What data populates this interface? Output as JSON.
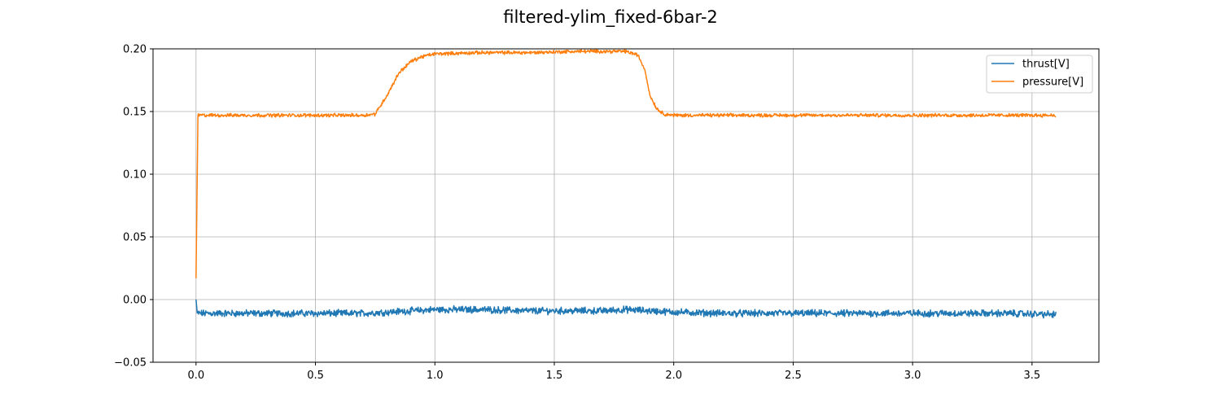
{
  "chart_data": {
    "type": "line",
    "title": "filtered-ylim_fixed-6bar-2",
    "xlabel": "",
    "ylabel": "",
    "xlim": [
      -0.18,
      3.78
    ],
    "ylim": [
      -0.05,
      0.2
    ],
    "xticks": [
      0.0,
      0.5,
      1.0,
      1.5,
      2.0,
      2.5,
      3.0,
      3.5
    ],
    "xtick_labels": [
      "0.0",
      "0.5",
      "1.0",
      "1.5",
      "2.0",
      "2.5",
      "3.0",
      "3.5"
    ],
    "yticks": [
      -0.05,
      0.0,
      0.05,
      0.1,
      0.15,
      0.2
    ],
    "ytick_labels": [
      "−0.05",
      "0.00",
      "0.05",
      "0.10",
      "0.15",
      "0.20"
    ],
    "grid": true,
    "legend_position": "top-right",
    "series": [
      {
        "name": "thrust[V]",
        "color": "#1f77b4",
        "x": [
          0.0,
          0.005,
          0.1,
          0.3,
          0.5,
          0.7,
          0.9,
          1.0,
          1.2,
          1.4,
          1.5,
          1.7,
          1.8,
          1.9,
          2.0,
          2.2,
          2.5,
          2.8,
          3.0,
          3.2,
          3.4,
          3.6
        ],
        "y": [
          0.0,
          -0.011,
          -0.011,
          -0.011,
          -0.011,
          -0.011,
          -0.009,
          -0.008,
          -0.008,
          -0.009,
          -0.009,
          -0.009,
          -0.008,
          -0.009,
          -0.01,
          -0.011,
          -0.011,
          -0.011,
          -0.011,
          -0.011,
          -0.011,
          -0.012
        ]
      },
      {
        "name": "pressure[V]",
        "color": "#ff7f0e",
        "x": [
          0.0,
          0.008,
          0.1,
          0.3,
          0.5,
          0.7,
          0.75,
          0.8,
          0.85,
          0.9,
          0.95,
          1.0,
          1.2,
          1.4,
          1.6,
          1.8,
          1.85,
          1.88,
          1.9,
          1.93,
          1.96,
          2.0,
          2.2,
          2.5,
          3.0,
          3.3,
          3.6
        ],
        "y": [
          0.017,
          0.147,
          0.147,
          0.147,
          0.147,
          0.147,
          0.148,
          0.163,
          0.181,
          0.19,
          0.194,
          0.196,
          0.197,
          0.197,
          0.198,
          0.198,
          0.195,
          0.183,
          0.163,
          0.152,
          0.148,
          0.147,
          0.147,
          0.147,
          0.147,
          0.147,
          0.147
        ]
      }
    ]
  }
}
